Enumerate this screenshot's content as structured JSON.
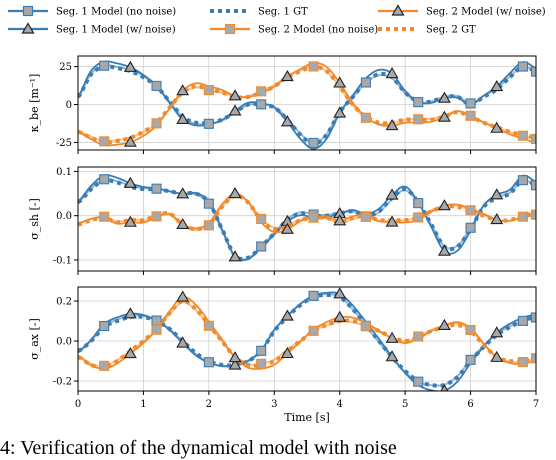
{
  "caption": "4: Verification of the dynamical model with noise",
  "colors": {
    "seg1": "#3a7db5",
    "seg2": "#f28a2a",
    "grid": "#d0d0d0",
    "marker_fill": "#a8a8a8"
  },
  "legend": [
    {
      "label": "Seg. 1 Model (no noise)",
      "series": "seg1",
      "style": "solid",
      "marker": "square"
    },
    {
      "label": "Seg. 1 Model (w/ noise)",
      "series": "seg1",
      "style": "solid",
      "marker": "triangle"
    },
    {
      "label": "Seg. 1 GT",
      "series": "seg1",
      "style": "dotted",
      "marker": "none"
    },
    {
      "label": "Seg. 2 Model (no noise)",
      "series": "seg2",
      "style": "solid",
      "marker": "square"
    },
    {
      "label": "Seg. 2 Model (w/ noise)",
      "series": "seg2",
      "style": "solid",
      "marker": "triangle"
    },
    {
      "label": "Seg. 2 GT",
      "series": "seg2",
      "style": "dotted",
      "marker": "none"
    }
  ],
  "chart_data": [
    {
      "type": "line",
      "ylabel": "κ_be [m⁻¹]",
      "ylim": [
        -30,
        32
      ],
      "yticks": [
        -25,
        0,
        25
      ],
      "xlim": [
        0,
        7
      ],
      "grid": true,
      "x": [
        0,
        0.2,
        0.4,
        0.6,
        0.8,
        1.0,
        1.2,
        1.4,
        1.6,
        1.8,
        2.0,
        2.2,
        2.4,
        2.6,
        2.8,
        3.0,
        3.2,
        3.4,
        3.6,
        3.8,
        4.0,
        4.2,
        4.4,
        4.6,
        4.8,
        5.0,
        5.2,
        5.4,
        5.6,
        5.8,
        6.0,
        6.2,
        6.4,
        6.6,
        6.8,
        7.0
      ],
      "series": [
        {
          "name": "Seg. 1 GT",
          "values": [
            5,
            20,
            25,
            24,
            22,
            18,
            12,
            2,
            -8,
            -12,
            -12,
            -10,
            -5,
            0,
            0,
            -2,
            -10,
            -20,
            -26,
            -20,
            -5,
            5,
            15,
            20,
            18,
            8,
            2,
            2,
            5,
            5,
            0,
            5,
            10,
            18,
            25,
            22
          ]
        },
        {
          "name": "Seg. 2 GT",
          "values": [
            -18,
            -22,
            -25,
            -24,
            -22,
            -18,
            -12,
            -2,
            8,
            12,
            10,
            8,
            5,
            5,
            8,
            12,
            18,
            22,
            25,
            22,
            12,
            0,
            -8,
            -12,
            -12,
            -10,
            -10,
            -10,
            -8,
            -5,
            -8,
            -12,
            -15,
            -18,
            -20,
            -22
          ]
        }
      ]
    },
    {
      "type": "line",
      "ylabel": "σ_sh [-]",
      "ylim": [
        -0.125,
        0.11
      ],
      "yticks": [
        -0.1,
        0.0,
        0.1
      ],
      "xlim": [
        0,
        7
      ],
      "grid": true,
      "x": [
        0,
        0.2,
        0.4,
        0.6,
        0.8,
        1.0,
        1.2,
        1.4,
        1.6,
        1.8,
        2.0,
        2.2,
        2.4,
        2.6,
        2.8,
        3.0,
        3.2,
        3.4,
        3.6,
        3.8,
        4.0,
        4.2,
        4.4,
        4.6,
        4.8,
        5.0,
        5.2,
        5.4,
        5.6,
        5.8,
        6.0,
        6.2,
        6.4,
        6.6,
        6.8,
        7.0
      ],
      "series": [
        {
          "name": "Seg. 1 GT",
          "values": [
            0.03,
            0.06,
            0.08,
            0.075,
            0.065,
            0.06,
            0.06,
            0.055,
            0.05,
            0.05,
            0.03,
            -0.03,
            -0.09,
            -0.095,
            -0.07,
            -0.04,
            -0.01,
            0.005,
            0.0,
            0.0,
            0.005,
            0.01,
            0.0,
            0.01,
            0.04,
            0.06,
            0.03,
            -0.02,
            -0.07,
            -0.07,
            -0.03,
            0.02,
            0.04,
            0.05,
            0.08,
            0.07
          ]
        },
        {
          "name": "Seg. 2 GT",
          "values": [
            -0.02,
            -0.01,
            -0.005,
            -0.015,
            -0.01,
            -0.01,
            0.0,
            0.005,
            -0.02,
            -0.03,
            -0.02,
            0.02,
            0.045,
            0.03,
            -0.01,
            -0.03,
            -0.025,
            -0.01,
            -0.005,
            -0.005,
            -0.015,
            -0.005,
            0.0,
            -0.01,
            -0.01,
            -0.01,
            -0.005,
            0.01,
            0.02,
            0.02,
            0.01,
            0.0,
            -0.01,
            -0.01,
            0.0,
            0.005
          ]
        }
      ]
    },
    {
      "type": "line",
      "ylabel": "σ_ax [-]",
      "ylim": [
        -0.25,
        0.27
      ],
      "yticks": [
        -0.2,
        0.0,
        0.2
      ],
      "xlim": [
        0,
        7
      ],
      "xlabel": "Time [s]",
      "xticks": [
        0,
        1,
        2,
        3,
        4,
        5,
        6,
        7
      ],
      "grid": true,
      "x": [
        0,
        0.2,
        0.4,
        0.6,
        0.8,
        1.0,
        1.2,
        1.4,
        1.6,
        1.8,
        2.0,
        2.2,
        2.4,
        2.6,
        2.8,
        3.0,
        3.2,
        3.4,
        3.6,
        3.8,
        4.0,
        4.2,
        4.4,
        4.6,
        4.8,
        5.0,
        5.2,
        5.4,
        5.6,
        5.8,
        6.0,
        6.2,
        6.4,
        6.6,
        6.8,
        7.0
      ],
      "series": [
        {
          "name": "Seg. 1 GT",
          "values": [
            -0.05,
            0.0,
            0.07,
            0.1,
            0.12,
            0.12,
            0.1,
            0.06,
            0.0,
            -0.06,
            -0.1,
            -0.12,
            -0.12,
            -0.1,
            -0.05,
            0.05,
            0.12,
            0.18,
            0.22,
            0.23,
            0.22,
            0.16,
            0.08,
            0.0,
            -0.08,
            -0.15,
            -0.2,
            -0.22,
            -0.22,
            -0.18,
            -0.1,
            -0.03,
            0.03,
            0.07,
            0.1,
            0.12
          ]
        },
        {
          "name": "Seg. 2 GT",
          "values": [
            -0.08,
            -0.12,
            -0.13,
            -0.1,
            -0.05,
            0.0,
            0.06,
            0.14,
            0.2,
            0.16,
            0.08,
            0.0,
            -0.08,
            -0.12,
            -0.12,
            -0.1,
            -0.05,
            0.0,
            0.05,
            0.08,
            0.1,
            0.1,
            0.08,
            0.05,
            0.02,
            0.0,
            0.02,
            0.05,
            0.07,
            0.08,
            0.05,
            -0.02,
            -0.08,
            -0.1,
            -0.1,
            -0.08
          ]
        }
      ]
    }
  ]
}
